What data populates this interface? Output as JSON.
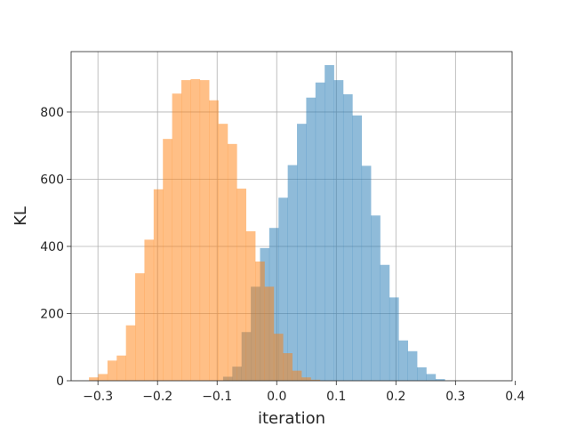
{
  "chart_data": {
    "type": "bar",
    "subtype": "histogram",
    "title": "",
    "xlabel": "iteration",
    "ylabel": "KL",
    "xlim": [
      -0.345,
      0.395
    ],
    "ylim": [
      0,
      980
    ],
    "xticks": [
      -0.3,
      -0.2,
      -0.1,
      0.0,
      0.1,
      0.2,
      0.3,
      0.4
    ],
    "xtick_labels": [
      "−0.3",
      "−0.2",
      "−0.1",
      "0.0",
      "0.1",
      "0.2",
      "0.3",
      "0.4"
    ],
    "yticks": [
      0,
      200,
      400,
      600,
      800
    ],
    "ytick_labels": [
      "0",
      "200",
      "400",
      "600",
      "800"
    ],
    "grid": true,
    "legend": false,
    "series": [
      {
        "color": "#1f77b4",
        "alpha": 0.5,
        "bins_start": -0.09,
        "bin_width": 0.0155,
        "values": [
          12,
          42,
          145,
          280,
          395,
          455,
          545,
          642,
          765,
          843,
          888,
          940,
          895,
          853,
          790,
          640,
          492,
          345,
          248,
          120,
          88,
          40,
          20,
          5
        ]
      },
      {
        "color": "#ff7f0e",
        "alpha": 0.5,
        "bins_start": -0.315,
        "bin_width": 0.0155,
        "values": [
          10,
          20,
          60,
          75,
          165,
          320,
          420,
          570,
          720,
          855,
          895,
          898,
          895,
          835,
          765,
          705,
          572,
          445,
          355,
          280,
          140,
          82,
          30,
          10,
          3
        ]
      }
    ]
  }
}
